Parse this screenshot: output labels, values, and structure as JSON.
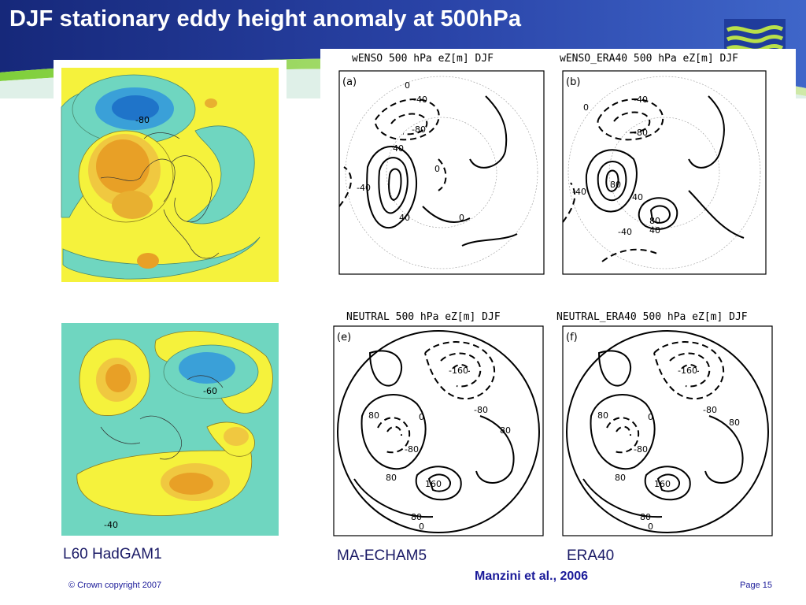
{
  "slide": {
    "title": "DJF stationary eddy height anomaly at 500hPa",
    "page": "Page 15",
    "copyright": "© Crown copyright 2007",
    "citation": "Manzini et al., 2006"
  },
  "model_labels": {
    "hadgam": "L60 HadGAM1",
    "echam": "MA-ECHAM5",
    "era": "ERA40"
  },
  "panels": {
    "a": {
      "title": "wENSO 500 hPa eZ[m] DJF",
      "letter": "(a)",
      "labels": [
        "0",
        "-40",
        "-80",
        "40",
        "0",
        "-40",
        "40",
        "0"
      ]
    },
    "b": {
      "title": "wENSO_ERA40 500 hPa eZ[m] DJF",
      "letter": "(b)",
      "labels": [
        "-40",
        "0",
        "-80",
        "-40",
        "80",
        "40",
        "80",
        "40",
        "-40"
      ]
    },
    "e": {
      "title": "NEUTRAL 500 hPa eZ[m] DJF",
      "letter": "(e)",
      "labels": [
        "-160",
        "-80",
        "80",
        "0",
        "-80",
        "80",
        "160",
        "80",
        "80",
        "0"
      ]
    },
    "f": {
      "title": "NEUTRAL_ERA40 500 hPa eZ[m] DJF",
      "letter": "(f)",
      "labels": [
        "-160",
        "-80",
        "80",
        "0",
        "-80",
        "80",
        "160",
        "80",
        "80",
        "0"
      ]
    },
    "hadgam_top": {
      "labels": [
        "-80"
      ]
    },
    "hadgam_bottom": {
      "labels": [
        "-60",
        "-40"
      ]
    }
  },
  "colors": {
    "title_text": "#ffffff",
    "banner_dark": "#1c2f8c",
    "accent_green": "#7ccc3c",
    "label_text": "#1a1a66",
    "citation_text": "#1a1a99",
    "field_yellow": "#f5f23c",
    "field_cyan": "#6fd6c0",
    "field_blue": "#2d8ed6",
    "field_orange": "#e39a22"
  }
}
